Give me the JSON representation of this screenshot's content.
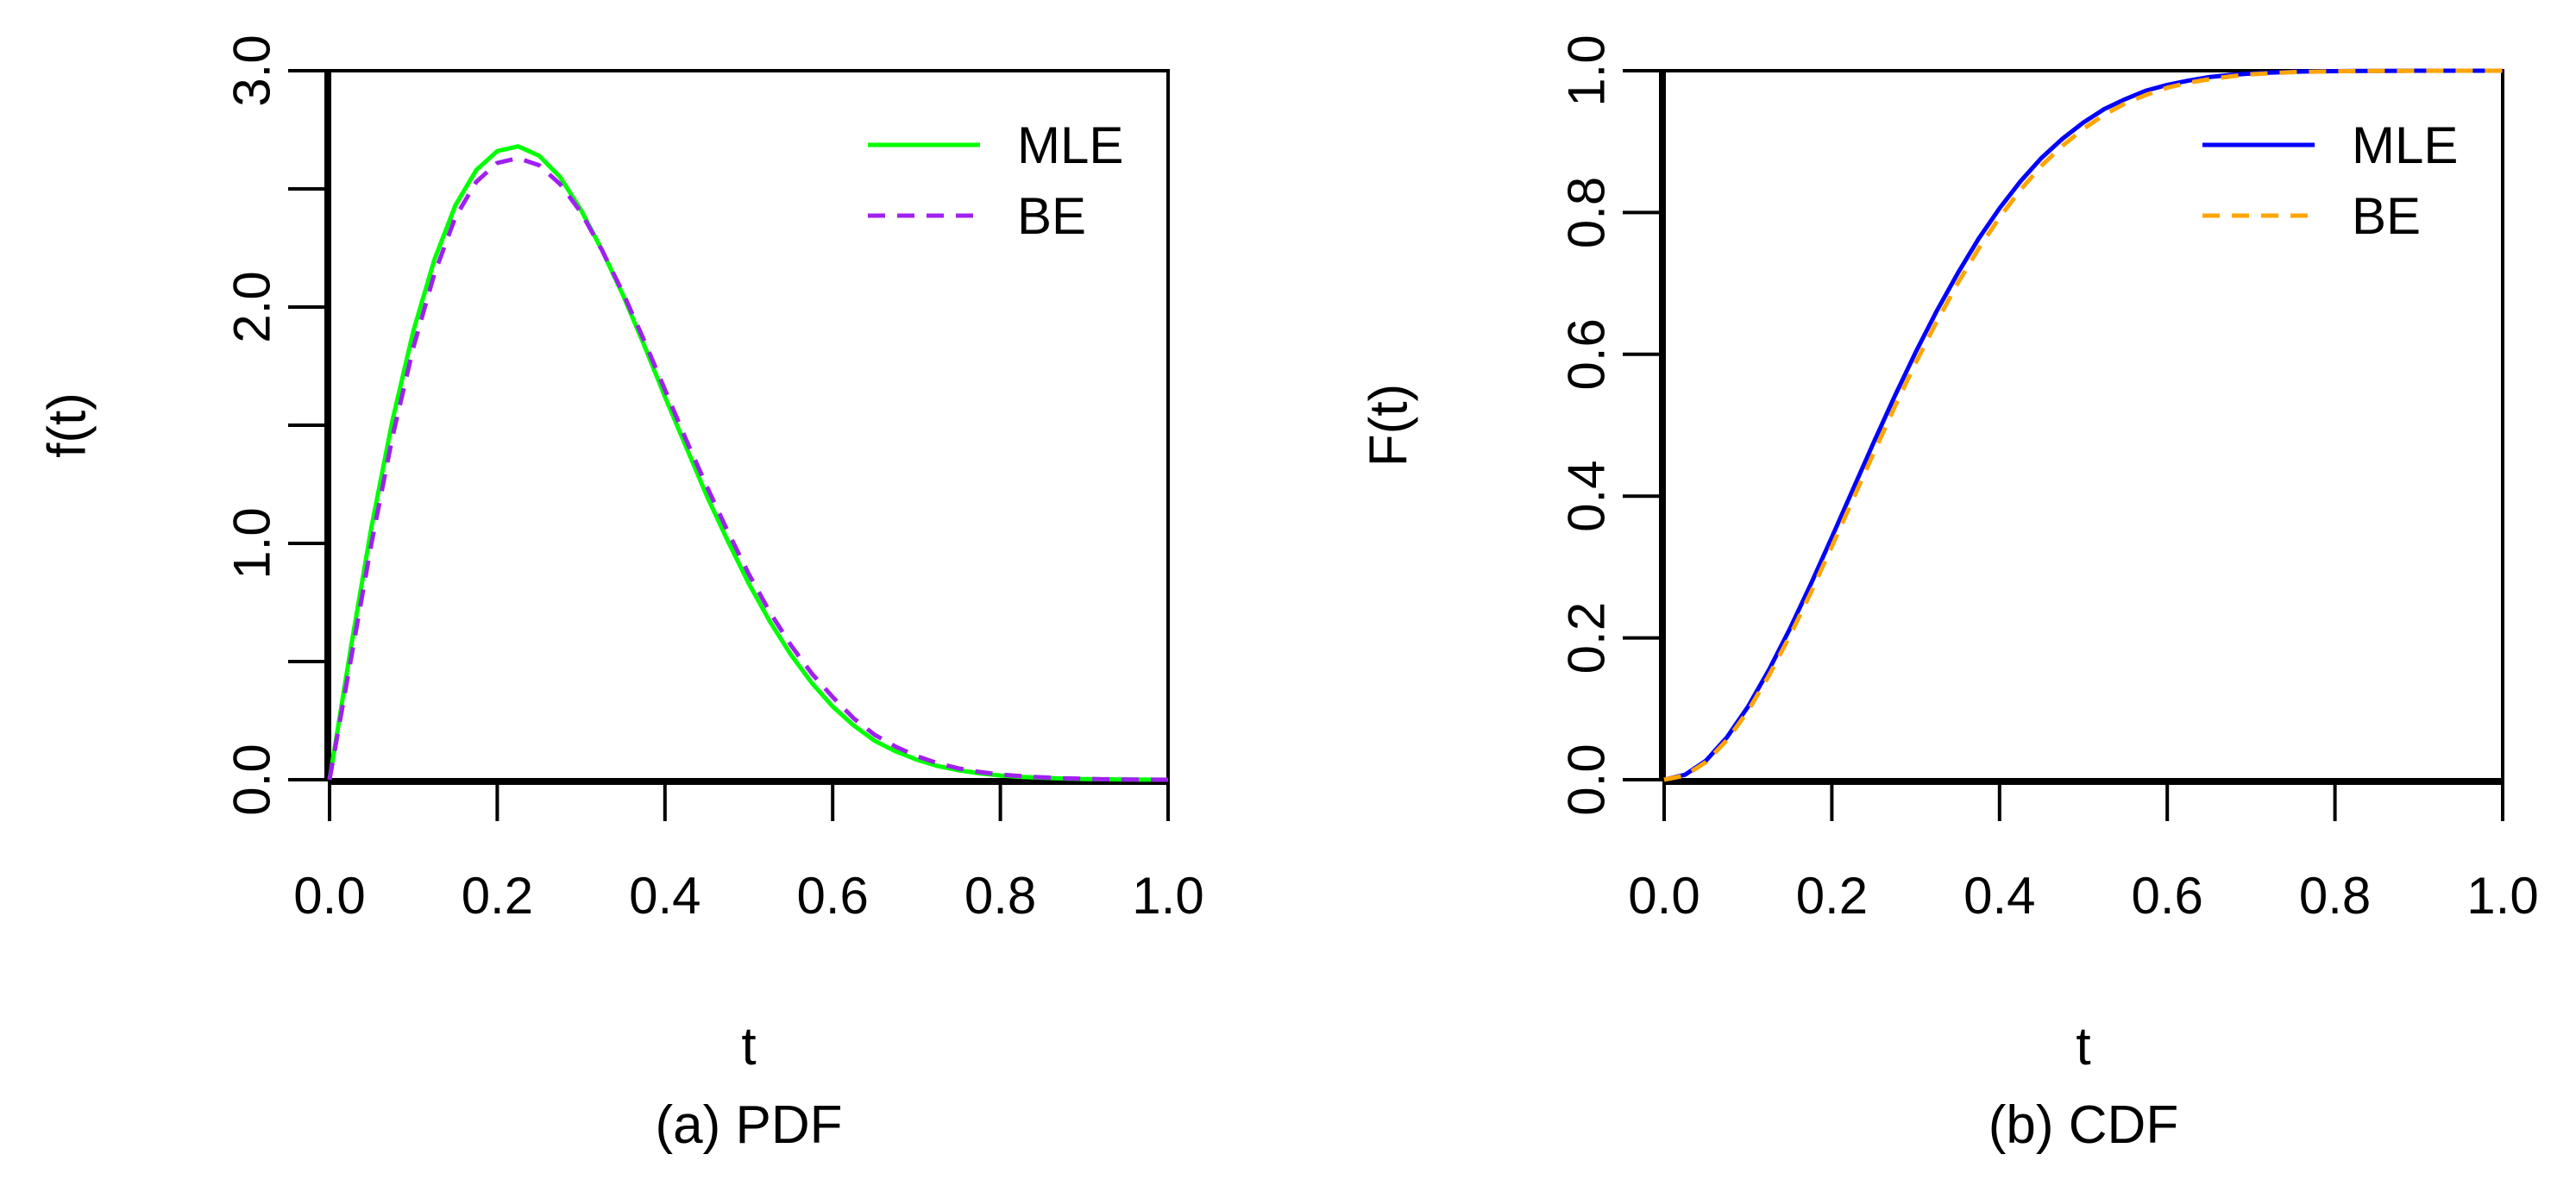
{
  "chart_data": [
    {
      "type": "line",
      "caption": "(a) PDF",
      "xlabel": "t",
      "ylabel": "f(t)",
      "xlim": [
        0,
        1
      ],
      "ylim": [
        0,
        3
      ],
      "x_ticks": [
        0,
        0.2,
        0.4,
        0.6,
        0.8,
        1.0
      ],
      "x_tick_labels": [
        "0.0",
        "0.2",
        "0.4",
        "0.6",
        "0.8",
        "1.0"
      ],
      "y_ticks": [
        0,
        0.5,
        1.0,
        1.5,
        2.0,
        2.5,
        3.0
      ],
      "y_tick_labels": [
        "0.0",
        "",
        "1.0",
        "",
        "2.0",
        "",
        "3.0"
      ],
      "legend_position": "top-right",
      "series": [
        {
          "name": "MLE",
          "color": "#00ff00",
          "dash": "solid",
          "x": [
            0,
            0.025,
            0.05,
            0.075,
            0.1,
            0.125,
            0.15,
            0.175,
            0.2,
            0.225,
            0.25,
            0.275,
            0.3,
            0.325,
            0.35,
            0.375,
            0.4,
            0.425,
            0.45,
            0.475,
            0.5,
            0.525,
            0.55,
            0.575,
            0.6,
            0.625,
            0.65,
            0.675,
            0.7,
            0.725,
            0.75,
            0.775,
            0.8,
            0.825,
            0.85,
            0.875,
            0.9,
            0.925,
            0.95,
            0.975,
            1.0
          ],
          "values": [
            0,
            0.55,
            1.07,
            1.52,
            1.9,
            2.2,
            2.43,
            2.58,
            2.66,
            2.68,
            2.64,
            2.55,
            2.41,
            2.24,
            2.05,
            1.84,
            1.62,
            1.41,
            1.2,
            1.01,
            0.83,
            0.67,
            0.53,
            0.41,
            0.31,
            0.23,
            0.165,
            0.12,
            0.085,
            0.058,
            0.04,
            0.027,
            0.018,
            0.012,
            0.008,
            0.005,
            0.003,
            0.002,
            0.001,
            0.0005,
            0
          ]
        },
        {
          "name": "BE",
          "color": "#a020f0",
          "dash": "dashed",
          "x": [
            0,
            0.025,
            0.05,
            0.075,
            0.1,
            0.125,
            0.15,
            0.175,
            0.2,
            0.225,
            0.25,
            0.275,
            0.3,
            0.325,
            0.35,
            0.375,
            0.4,
            0.425,
            0.45,
            0.475,
            0.5,
            0.525,
            0.55,
            0.575,
            0.6,
            0.625,
            0.65,
            0.675,
            0.7,
            0.725,
            0.75,
            0.775,
            0.8,
            0.825,
            0.85,
            0.875,
            0.9,
            0.925,
            0.95,
            0.975,
            1.0
          ],
          "values": [
            0,
            0.5,
            1.0,
            1.45,
            1.83,
            2.14,
            2.38,
            2.53,
            2.61,
            2.63,
            2.6,
            2.52,
            2.4,
            2.24,
            2.06,
            1.86,
            1.65,
            1.44,
            1.24,
            1.05,
            0.87,
            0.71,
            0.57,
            0.45,
            0.35,
            0.26,
            0.19,
            0.14,
            0.1,
            0.07,
            0.048,
            0.033,
            0.022,
            0.015,
            0.01,
            0.006,
            0.004,
            0.002,
            0.001,
            0.0005,
            0
          ]
        }
      ]
    },
    {
      "type": "line",
      "caption": "(b) CDF",
      "xlabel": "t",
      "ylabel": "F(t)",
      "xlim": [
        0,
        1
      ],
      "ylim": [
        0,
        1
      ],
      "x_ticks": [
        0,
        0.2,
        0.4,
        0.6,
        0.8,
        1.0
      ],
      "x_tick_labels": [
        "0.0",
        "0.2",
        "0.4",
        "0.6",
        "0.8",
        "1.0"
      ],
      "y_ticks": [
        0,
        0.2,
        0.4,
        0.6,
        0.8,
        1.0
      ],
      "y_tick_labels": [
        "0.0",
        "0.2",
        "0.4",
        "0.6",
        "0.8",
        "1.0"
      ],
      "legend_position": "top-right",
      "series": [
        {
          "name": "MLE",
          "color": "#0000ff",
          "dash": "solid",
          "x": [
            0,
            0.025,
            0.05,
            0.075,
            0.1,
            0.125,
            0.15,
            0.175,
            0.2,
            0.225,
            0.25,
            0.275,
            0.3,
            0.325,
            0.35,
            0.375,
            0.4,
            0.425,
            0.45,
            0.475,
            0.5,
            0.525,
            0.55,
            0.575,
            0.6,
            0.625,
            0.65,
            0.675,
            0.7,
            0.725,
            0.75,
            0.775,
            0.8,
            0.825,
            0.85,
            0.875,
            0.9,
            0.925,
            0.95,
            0.975,
            1.0
          ],
          "values": [
            0,
            0.007,
            0.027,
            0.06,
            0.103,
            0.155,
            0.213,
            0.276,
            0.342,
            0.409,
            0.476,
            0.541,
            0.603,
            0.661,
            0.714,
            0.763,
            0.806,
            0.844,
            0.877,
            0.904,
            0.927,
            0.946,
            0.96,
            0.972,
            0.98,
            0.986,
            0.991,
            0.994,
            0.996,
            0.9975,
            0.9985,
            0.999,
            0.9994,
            0.9996,
            0.9998,
            0.9999,
            1.0,
            1.0,
            1.0,
            1.0,
            1.0
          ]
        },
        {
          "name": "BE",
          "color": "#ffa500",
          "dash": "dashed",
          "x": [
            0,
            0.025,
            0.05,
            0.075,
            0.1,
            0.125,
            0.15,
            0.175,
            0.2,
            0.225,
            0.25,
            0.275,
            0.3,
            0.325,
            0.35,
            0.375,
            0.4,
            0.425,
            0.45,
            0.475,
            0.5,
            0.525,
            0.55,
            0.575,
            0.6,
            0.625,
            0.65,
            0.675,
            0.7,
            0.725,
            0.75,
            0.775,
            0.8,
            0.825,
            0.85,
            0.875,
            0.9,
            0.925,
            0.95,
            0.975,
            1.0
          ],
          "values": [
            0,
            0.006,
            0.025,
            0.056,
            0.097,
            0.147,
            0.203,
            0.264,
            0.329,
            0.395,
            0.461,
            0.526,
            0.588,
            0.646,
            0.7,
            0.749,
            0.793,
            0.832,
            0.866,
            0.894,
            0.918,
            0.938,
            0.954,
            0.966,
            0.976,
            0.983,
            0.988,
            0.992,
            0.995,
            0.9965,
            0.998,
            0.9987,
            0.9992,
            0.9995,
            0.9997,
            0.9998,
            0.9999,
            1.0,
            1.0,
            1.0,
            1.0
          ]
        }
      ]
    }
  ]
}
